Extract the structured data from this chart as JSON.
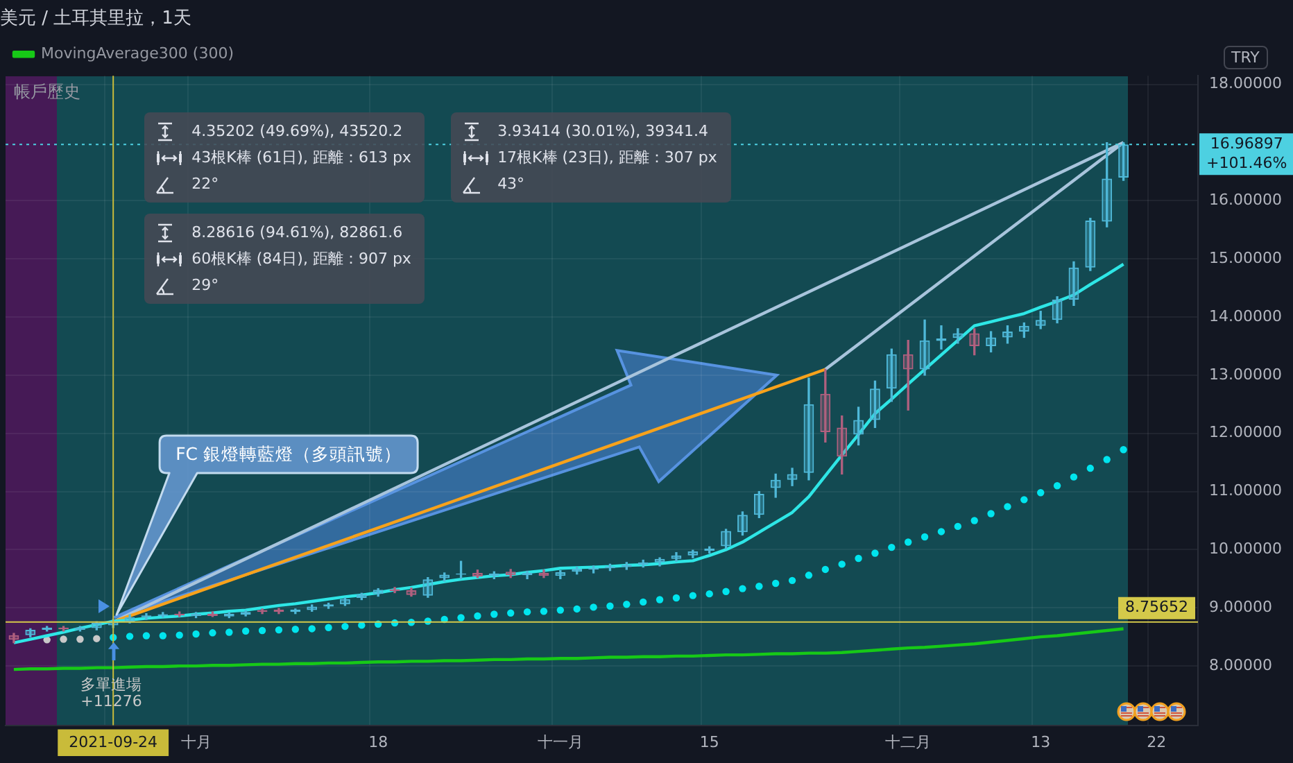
{
  "chart_data": {
    "type": "candlestick",
    "title": "美元 / 土耳其里拉，1天",
    "categories": [
      null,
      null,
      null,
      null,
      null,
      null,
      "2021-09-24",
      null,
      null,
      null,
      null,
      "十月",
      null,
      null,
      null,
      null,
      null,
      null,
      null,
      null,
      null,
      null,
      "18",
      null,
      null,
      null,
      null,
      null,
      null,
      null,
      null,
      null,
      null,
      "十一月",
      null,
      null,
      null,
      null,
      null,
      null,
      null,
      null,
      "15",
      null,
      null,
      null,
      null,
      null,
      null,
      null,
      null,
      null,
      null,
      null,
      "十二月",
      null,
      null,
      null,
      null,
      null,
      null,
      null,
      "13",
      null,
      null,
      null,
      null,
      null,
      null,
      "22",
      null,
      null
    ],
    "ohlc": [
      [
        8.53,
        8.56,
        8.4,
        8.45
      ],
      [
        8.53,
        8.64,
        8.5,
        8.62
      ],
      [
        8.62,
        8.68,
        8.6,
        8.66
      ],
      [
        8.66,
        8.68,
        8.6,
        8.63
      ],
      [
        8.62,
        8.68,
        8.6,
        8.66
      ],
      [
        8.65,
        8.76,
        8.62,
        8.74
      ],
      [
        8.7,
        8.8,
        8.66,
        8.76
      ],
      [
        8.76,
        8.88,
        8.74,
        8.84
      ],
      [
        8.84,
        8.9,
        8.8,
        8.87
      ],
      [
        8.86,
        8.92,
        8.84,
        8.89
      ],
      [
        8.9,
        8.93,
        8.85,
        8.87
      ],
      [
        8.86,
        8.92,
        8.83,
        8.9
      ],
      [
        8.9,
        8.93,
        8.85,
        8.86
      ],
      [
        8.85,
        8.92,
        8.83,
        8.9
      ],
      [
        8.88,
        8.95,
        8.86,
        8.93
      ],
      [
        8.96,
        8.98,
        8.9,
        8.93
      ],
      [
        8.97,
        8.99,
        8.9,
        8.93
      ],
      [
        8.93,
        8.98,
        8.9,
        8.97
      ],
      [
        8.96,
        9.05,
        8.94,
        9.02
      ],
      [
        9.02,
        9.08,
        8.99,
        9.06
      ],
      [
        9.06,
        9.17,
        9.04,
        9.15
      ],
      [
        9.17,
        9.25,
        9.14,
        9.23
      ],
      [
        9.24,
        9.33,
        9.2,
        9.31
      ],
      [
        9.32,
        9.35,
        9.26,
        9.29
      ],
      [
        9.3,
        9.34,
        9.2,
        9.22
      ],
      [
        9.21,
        9.52,
        9.18,
        9.49
      ],
      [
        9.51,
        9.6,
        9.46,
        9.57
      ],
      [
        9.57,
        9.8,
        9.5,
        9.59
      ],
      [
        9.6,
        9.65,
        9.52,
        9.54
      ],
      [
        9.55,
        9.62,
        9.5,
        9.59
      ],
      [
        9.62,
        9.66,
        9.52,
        9.56
      ],
      [
        9.56,
        9.63,
        9.5,
        9.6
      ],
      [
        9.6,
        9.65,
        9.52,
        9.55
      ],
      [
        9.55,
        9.64,
        9.5,
        9.61
      ],
      [
        9.62,
        9.7,
        9.58,
        9.67
      ],
      [
        9.66,
        9.72,
        9.6,
        9.69
      ],
      [
        9.68,
        9.75,
        9.64,
        9.71
      ],
      [
        9.7,
        9.78,
        9.66,
        9.74
      ],
      [
        9.74,
        9.82,
        9.7,
        9.78
      ],
      [
        9.78,
        9.86,
        9.72,
        9.84
      ],
      [
        9.84,
        9.95,
        9.8,
        9.9
      ],
      [
        9.9,
        9.99,
        9.86,
        9.97
      ],
      [
        9.98,
        10.05,
        9.94,
        10.02
      ],
      [
        10.06,
        10.35,
        10.02,
        10.32
      ],
      [
        10.3,
        10.65,
        10.25,
        10.6
      ],
      [
        10.6,
        11.0,
        10.55,
        10.96
      ],
      [
        11.06,
        11.3,
        10.9,
        11.2
      ],
      [
        11.2,
        11.4,
        11.1,
        11.3
      ],
      [
        11.32,
        12.95,
        11.2,
        12.5
      ],
      [
        12.68,
        13.1,
        11.85,
        12.02
      ],
      [
        12.1,
        12.3,
        11.3,
        11.6
      ],
      [
        11.98,
        12.45,
        11.8,
        12.23
      ],
      [
        12.23,
        12.9,
        12.1,
        12.77
      ],
      [
        12.77,
        13.45,
        12.55,
        13.36
      ],
      [
        13.36,
        13.6,
        12.4,
        13.1
      ],
      [
        13.1,
        13.95,
        13.0,
        13.6
      ],
      [
        13.59,
        13.85,
        13.45,
        13.63
      ],
      [
        13.64,
        13.8,
        13.55,
        13.72
      ],
      [
        13.72,
        13.8,
        13.35,
        13.5
      ],
      [
        13.5,
        13.75,
        13.4,
        13.65
      ],
      [
        13.65,
        13.85,
        13.55,
        13.75
      ],
      [
        13.75,
        13.9,
        13.65,
        13.85
      ],
      [
        13.85,
        14.1,
        13.8,
        13.95
      ],
      [
        13.95,
        14.35,
        13.9,
        14.3
      ],
      [
        14.3,
        14.95,
        14.2,
        14.85
      ],
      [
        14.85,
        15.7,
        14.8,
        15.66
      ],
      [
        15.64,
        17.0,
        15.55,
        16.38
      ],
      [
        16.4,
        17.0,
        16.35,
        16.96897
      ],
      null,
      null,
      null,
      null
    ],
    "colors": [
      "#b0607f",
      "#4fb8d8",
      "#4fb8d8",
      "#b0607f",
      "#4fb8d8",
      "#4fb8d8",
      "#4fb8d8",
      "#4fb8d8",
      "#4fb8d8",
      "#4fb8d8",
      "#b0607f",
      "#4fb8d8",
      "#b0607f",
      "#4fb8d8",
      "#4fb8d8",
      "#b0607f",
      "#b0607f",
      "#4fb8d8",
      "#4fb8d8",
      "#4fb8d8",
      "#4fb8d8",
      "#4fb8d8",
      "#4fb8d8",
      "#b0607f",
      "#b0607f",
      "#4fb8d8",
      "#4fb8d8",
      "#4fb8d8",
      "#b0607f",
      "#4fb8d8",
      "#b0607f",
      "#4fb8d8",
      "#b0607f",
      "#4fb8d8",
      "#4fb8d8",
      "#4fb8d8",
      "#4fb8d8",
      "#4fb8d8",
      "#4fb8d8",
      "#4fb8d8",
      "#4fb8d8",
      "#4fb8d8",
      "#4fb8d8",
      "#4fb8d8",
      "#4fb8d8",
      "#4fb8d8",
      "#4fb8d8",
      "#4fb8d8",
      "#4fb8d8",
      "#b0607f",
      "#b0607f",
      "#4fb8d8",
      "#4fb8d8",
      "#4fb8d8",
      "#b0607f",
      "#4fb8d8",
      "#4fb8d8",
      "#4fb8d8",
      "#b0607f",
      "#4fb8d8",
      "#4fb8d8",
      "#4fb8d8",
      "#4fb8d8",
      "#4fb8d8",
      "#4fb8d8",
      "#4fb8d8",
      "#4fb8d8",
      "#4fb8d8",
      null,
      null,
      null,
      null
    ],
    "series": [
      {
        "type": "line",
        "color": "#2ee6e6",
        "values": [
          8.4,
          8.46,
          8.52,
          8.58,
          8.65,
          8.71,
          8.77,
          8.79,
          8.82,
          8.84,
          8.86,
          8.89,
          8.91,
          8.94,
          8.96,
          9.0,
          9.04,
          9.07,
          9.11,
          9.15,
          9.19,
          9.22,
          9.26,
          9.31,
          9.35,
          9.4,
          9.45,
          9.49,
          9.52,
          9.55,
          9.57,
          9.61,
          9.64,
          9.68,
          9.69,
          9.7,
          9.71,
          9.73,
          9.74,
          9.76,
          9.79,
          9.81,
          9.9,
          10.0,
          10.13,
          10.3,
          10.47,
          10.64,
          10.91,
          11.27,
          11.63,
          11.98,
          12.34,
          12.59,
          12.85,
          13.1,
          13.35,
          13.6,
          13.85,
          13.92,
          13.99,
          14.06,
          14.17,
          14.27,
          14.38,
          14.56,
          14.73,
          14.91,
          null,
          null,
          null,
          null
        ]
      },
      {
        "type": "scatter",
        "marker": "circle",
        "color": "#c8c8c8",
        "values": [
          null,
          null,
          8.45,
          8.46,
          8.46,
          8.47,
          null,
          null,
          null,
          null,
          null,
          null,
          null,
          null,
          null,
          null,
          null,
          null,
          null,
          null,
          null,
          null,
          null,
          null,
          null,
          null,
          null,
          null,
          null,
          null,
          null,
          null,
          null,
          null,
          null,
          null,
          null,
          null,
          null,
          null,
          null,
          null,
          null,
          null,
          null,
          null,
          null,
          null,
          null,
          null,
          null,
          null,
          null,
          null,
          null,
          null,
          null,
          null,
          null,
          null,
          null,
          null,
          null,
          null,
          null,
          null,
          null,
          null,
          null,
          null,
          null,
          null
        ]
      },
      {
        "type": "scatter",
        "marker": "circle",
        "color": "#00e5ee",
        "values": [
          null,
          null,
          null,
          null,
          null,
          null,
          8.49,
          8.51,
          8.52,
          8.52,
          8.53,
          8.55,
          8.57,
          8.58,
          8.6,
          8.61,
          8.62,
          8.63,
          8.64,
          8.66,
          8.68,
          8.7,
          8.72,
          8.74,
          8.75,
          8.77,
          8.8,
          8.83,
          8.86,
          8.89,
          8.91,
          8.93,
          8.94,
          8.96,
          8.98,
          9.01,
          9.03,
          9.06,
          9.1,
          9.14,
          9.17,
          9.21,
          9.24,
          9.28,
          9.33,
          9.37,
          9.42,
          9.47,
          9.56,
          9.66,
          9.75,
          9.85,
          9.94,
          10.04,
          10.13,
          10.22,
          10.31,
          10.4,
          10.5,
          10.62,
          10.74,
          10.86,
          10.98,
          11.1,
          11.25,
          11.4,
          11.55,
          11.72,
          null,
          null,
          null,
          null
        ]
      },
      {
        "type": "line",
        "name": "MovingAverage300 (300)",
        "color": "#17c917",
        "values": [
          7.94,
          7.95,
          7.95,
          7.96,
          7.96,
          7.97,
          7.97,
          7.98,
          7.99,
          7.99,
          8.0,
          8.0,
          8.01,
          8.01,
          8.02,
          8.03,
          8.03,
          8.04,
          8.04,
          8.05,
          8.05,
          8.06,
          8.07,
          8.07,
          8.08,
          8.08,
          8.09,
          8.09,
          8.1,
          8.11,
          8.11,
          8.12,
          8.12,
          8.13,
          8.13,
          8.14,
          8.15,
          8.15,
          8.16,
          8.16,
          8.17,
          8.17,
          8.18,
          8.19,
          8.19,
          8.2,
          8.21,
          8.21,
          8.22,
          8.22,
          8.23,
          8.25,
          8.27,
          8.29,
          8.31,
          8.32,
          8.34,
          8.36,
          8.38,
          8.41,
          8.44,
          8.47,
          8.5,
          8.52,
          8.55,
          8.58,
          8.61,
          8.64,
          null,
          null,
          null,
          null
        ]
      },
      {
        "type": "line",
        "color": "#f7a21b",
        "values": [
          null,
          null,
          null,
          null,
          null,
          null,
          8.76,
          null,
          null,
          null,
          null,
          null,
          null,
          null,
          null,
          null,
          null,
          null,
          null,
          null,
          null,
          null,
          null,
          null,
          null,
          null,
          null,
          null,
          null,
          null,
          null,
          null,
          null,
          null,
          null,
          null,
          null,
          null,
          null,
          null,
          null,
          null,
          null,
          null,
          null,
          null,
          null,
          null,
          null,
          13.1,
          null,
          null,
          null,
          null,
          null,
          null,
          null,
          null,
          null,
          null,
          null,
          null,
          null,
          null,
          null,
          null,
          null,
          null,
          null,
          null,
          null,
          null
        ]
      },
      {
        "type": "line",
        "color": "#a8c4dc",
        "values": [
          null,
          null,
          null,
          null,
          null,
          null,
          8.76,
          null,
          null,
          null,
          null,
          null,
          null,
          null,
          null,
          null,
          null,
          null,
          null,
          null,
          null,
          null,
          null,
          null,
          null,
          null,
          null,
          null,
          null,
          null,
          null,
          null,
          null,
          null,
          null,
          null,
          null,
          null,
          null,
          null,
          null,
          null,
          null,
          null,
          null,
          null,
          null,
          null,
          null,
          null,
          null,
          null,
          null,
          null,
          null,
          null,
          null,
          null,
          null,
          null,
          null,
          null,
          null,
          null,
          null,
          null,
          null,
          17.0,
          null,
          null,
          null,
          null
        ]
      },
      {
        "type": "line",
        "color": "#a8c4dc",
        "values": [
          null,
          null,
          null,
          null,
          null,
          null,
          null,
          null,
          null,
          null,
          null,
          null,
          null,
          null,
          null,
          null,
          null,
          null,
          null,
          null,
          null,
          null,
          null,
          null,
          null,
          null,
          null,
          null,
          null,
          null,
          null,
          null,
          null,
          null,
          null,
          null,
          null,
          null,
          null,
          null,
          null,
          null,
          null,
          null,
          null,
          null,
          null,
          null,
          null,
          13.1,
          null,
          null,
          null,
          null,
          null,
          null,
          null,
          null,
          null,
          null,
          null,
          null,
          null,
          null,
          null,
          null,
          null,
          17.0,
          null,
          null,
          null,
          null
        ]
      }
    ],
    "ylim": [
      6.98,
      18.15
    ],
    "yticks": [
      {
        "value": 8,
        "label": "8.00000"
      },
      {
        "value": 9,
        "label": "9.00000"
      },
      {
        "value": 10,
        "label": "10.00000"
      },
      {
        "value": 11,
        "label": "11.00000"
      },
      {
        "value": 12,
        "label": "12.00000"
      },
      {
        "value": 13,
        "label": "13.00000"
      },
      {
        "value": 14,
        "label": "14.00000"
      },
      {
        "value": 15,
        "label": "15.00000"
      },
      {
        "value": 16,
        "label": "16.00000"
      },
      {
        "value": 18,
        "label": "18.00000"
      }
    ],
    "ref_lines": [
      {
        "axis": "y",
        "value": 8.75652,
        "label": "8.75652",
        "color": "#d4c94a"
      },
      {
        "axis": "x",
        "value": "2021-09-24",
        "color": "#c9bb3a"
      },
      {
        "axis": "y",
        "value": 16.96897,
        "label": "16.96897",
        "color": "#4dd0e1",
        "line_style": "dotted"
      }
    ],
    "annotations": [
      "帳戶歷史",
      "TRY",
      "多單進場",
      "+11276",
      "FC 銀燈轉藍燈（多頭訊號）",
      "+101.46%",
      "4.35202 (49.69%), 43520.2",
      "43根K棒 (61日), 距離：613 px",
      "22°",
      "8.28616 (94.61%), 82861.6",
      "60根K棒 (84日), 距離：907 px",
      "29°",
      "3.93414 (30.01%), 39341.4",
      "17根K棒 (23日), 距離：307 px",
      "43°"
    ],
    "grid": true,
    "legend": "top left"
  }
}
